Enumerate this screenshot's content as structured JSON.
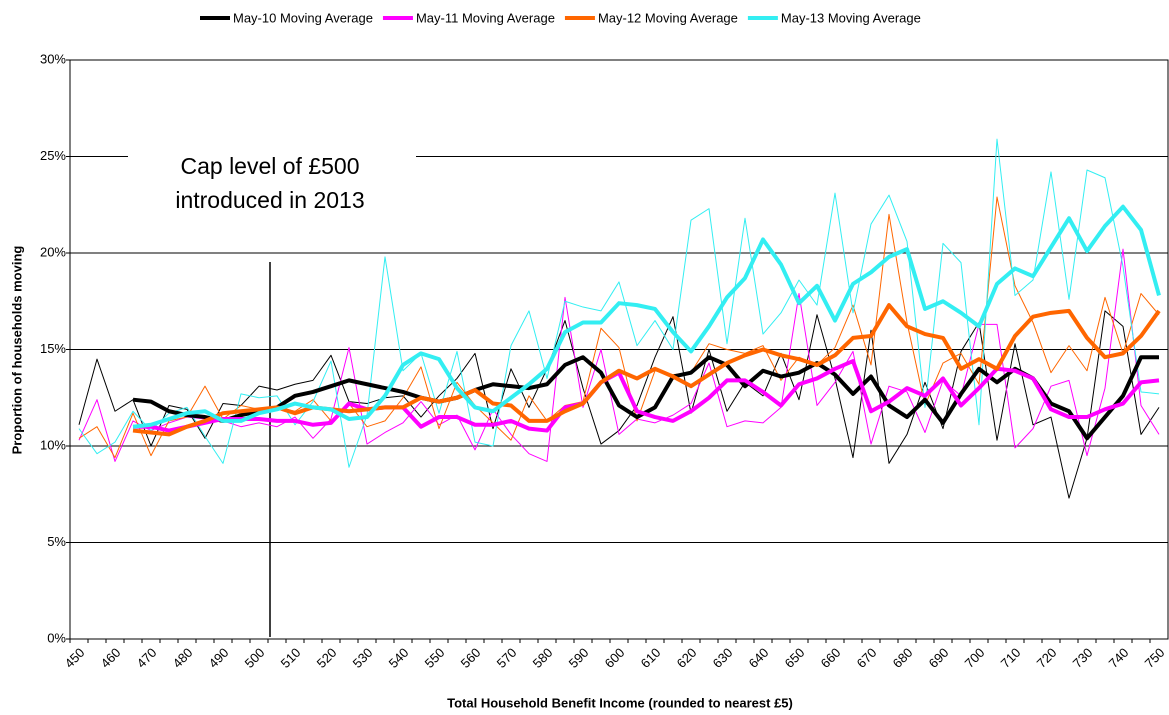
{
  "chart_data": {
    "type": "line",
    "x_label": "Total Household Benefit Income (rounded to nearest £5)",
    "y_label": "Proportion of households moving",
    "annotation": [
      "Cap level of £500",
      "introduced in 2013"
    ],
    "categories": [
      450,
      null,
      460,
      null,
      470,
      null,
      480,
      null,
      490,
      null,
      500,
      null,
      510,
      null,
      520,
      null,
      530,
      null,
      540,
      null,
      550,
      null,
      560,
      null,
      570,
      null,
      580,
      null,
      590,
      null,
      600,
      null,
      610,
      null,
      620,
      null,
      630,
      null,
      640,
      null,
      650,
      null,
      660,
      null,
      670,
      null,
      680,
      null,
      690,
      null,
      700,
      null,
      710,
      null,
      720,
      null,
      730,
      null,
      740,
      null,
      750
    ],
    "ylim": [
      0,
      30
    ],
    "yticks": [
      {
        "value": 0,
        "label": "0%"
      },
      {
        "value": 5,
        "label": "5%"
      },
      {
        "value": 10,
        "label": "10%"
      },
      {
        "value": 15,
        "label": "15%"
      },
      {
        "value": 20,
        "label": "20%"
      },
      {
        "value": 25,
        "label": "25%"
      },
      {
        "value": 30,
        "label": "30%"
      }
    ],
    "grid": true,
    "legend": "top",
    "series": [
      {
        "color": "#000000",
        "line_width": 1,
        "values": [
          11.1,
          14.5,
          11.8,
          12.4,
          10.0,
          12.1,
          11.9,
          10.4,
          12.2,
          12.1,
          13.1,
          12.9,
          13.2,
          13.4,
          14.7,
          12.3,
          12.2,
          12.5,
          12.6,
          11.5,
          12.6,
          13.5,
          14.8,
          10.9,
          14.0,
          12.0,
          14.0,
          16.5,
          13.0,
          10.1,
          10.8,
          12.1,
          14.6,
          16.7,
          11.7,
          15.0,
          11.8,
          13.3,
          12.6,
          14.8,
          12.4,
          16.8,
          13.5,
          9.4,
          16.0,
          9.1,
          10.6,
          13.3,
          10.9,
          14.9,
          16.4,
          10.3,
          15.3,
          11.1,
          11.5,
          7.3,
          10.4,
          17.0,
          16.2,
          10.6,
          12.0
        ]
      },
      {
        "color": "#ff00ff",
        "line_width": 1,
        "values": [
          10.3,
          12.4,
          9.2,
          11.3,
          10.8,
          11.2,
          11.5,
          11.4,
          11.3,
          11.0,
          11.2,
          11.0,
          11.5,
          10.4,
          11.4,
          15.1,
          10.1,
          10.7,
          11.2,
          12.3,
          11.1,
          11.6,
          9.8,
          11.9,
          10.6,
          9.6,
          9.2,
          17.7,
          12.0,
          15.0,
          10.6,
          11.4,
          11.2,
          11.6,
          12.2,
          14.3,
          11.0,
          11.3,
          11.2,
          12.0,
          17.9,
          12.1,
          13.3,
          14.9,
          10.1,
          13.1,
          12.8,
          10.7,
          13.4,
          12.6,
          16.3,
          16.3,
          9.9,
          10.9,
          13.1,
          13.4,
          9.5,
          13.0,
          20.2,
          12.1,
          10.6
        ]
      },
      {
        "color": "#ff6600",
        "line_width": 1,
        "values": [
          10.4,
          11.0,
          9.4,
          11.7,
          9.5,
          11.3,
          11.5,
          13.1,
          11.4,
          12.1,
          11.9,
          12.0,
          11.8,
          12.4,
          11.3,
          12.2,
          11.0,
          11.3,
          12.5,
          14.1,
          10.9,
          13.3,
          12.1,
          11.2,
          10.3,
          12.6,
          11.3,
          12.1,
          12.3,
          16.1,
          15.1,
          11.3,
          13.9,
          13.7,
          13.8,
          15.3,
          15.0,
          14.8,
          15.2,
          13.4,
          14.6,
          14.2,
          15.1,
          17.3,
          14.2,
          22.0,
          16.4,
          12.1,
          14.3,
          14.8,
          13.2,
          22.9,
          18.3,
          16.4,
          13.8,
          15.2,
          13.9,
          17.7,
          14.8,
          17.9,
          16.8
        ]
      },
      {
        "color": "#33eef2",
        "line_width": 1,
        "values": [
          10.9,
          9.6,
          10.2,
          11.8,
          10.8,
          11.7,
          12.0,
          10.5,
          9.1,
          12.7,
          12.5,
          12.6,
          11.1,
          12.3,
          14.4,
          8.9,
          11.6,
          19.8,
          13.9,
          14.8,
          11.7,
          14.9,
          10.2,
          10.0,
          15.2,
          17.0,
          13.5,
          17.5,
          17.2,
          17.0,
          18.5,
          15.2,
          16.5,
          15.0,
          21.7,
          22.3,
          15.3,
          21.8,
          15.8,
          16.9,
          18.6,
          17.3,
          23.1,
          16.9,
          21.5,
          23.0,
          20.6,
          12.0,
          20.5,
          19.5,
          11.1,
          25.9,
          17.8,
          18.6,
          24.2,
          17.6,
          24.3,
          23.9,
          19.3,
          12.8,
          12.7
        ]
      },
      {
        "name": "May-10 Moving Average",
        "color": "#000000",
        "line_width": 4,
        "values": [
          null,
          null,
          null,
          12.4,
          12.3,
          11.8,
          11.6,
          11.5,
          11.3,
          11.6,
          11.8,
          12.0,
          12.6,
          12.8,
          13.1,
          13.4,
          13.2,
          13.0,
          12.8,
          12.5,
          12.3,
          12.5,
          12.9,
          13.2,
          13.1,
          13.0,
          13.2,
          14.2,
          14.6,
          13.8,
          12.1,
          11.5,
          12.0,
          13.6,
          13.8,
          14.6,
          14.2,
          13.1,
          13.9,
          13.6,
          13.8,
          14.3,
          13.7,
          12.7,
          13.6,
          12.1,
          11.5,
          12.4,
          11.2,
          12.7,
          14.0,
          13.3,
          14.0,
          13.5,
          12.2,
          11.8,
          10.4,
          11.5,
          12.6,
          14.6,
          14.6
        ]
      },
      {
        "name": "May-11 Moving Average",
        "color": "#ff00ff",
        "line_width": 4,
        "values": [
          null,
          null,
          null,
          11.0,
          11.0,
          10.8,
          11.0,
          11.2,
          11.4,
          11.4,
          11.4,
          11.3,
          11.3,
          11.1,
          11.2,
          12.2,
          11.9,
          12.0,
          12.0,
          11.0,
          11.5,
          11.5,
          11.1,
          11.1,
          11.3,
          10.9,
          10.8,
          12.0,
          12.2,
          13.3,
          13.8,
          11.8,
          11.5,
          11.3,
          11.8,
          12.5,
          13.4,
          13.4,
          12.8,
          12.1,
          13.2,
          13.5,
          14.0,
          14.4,
          11.8,
          12.3,
          13.0,
          12.6,
          13.5,
          12.1,
          13.0,
          14.0,
          13.9,
          13.5,
          11.9,
          11.5,
          11.5,
          11.9,
          12.2,
          13.3,
          13.4
        ]
      },
      {
        "name": "May-12 Moving Average",
        "color": "#ff6600",
        "line_width": 4,
        "values": [
          null,
          null,
          null,
          10.8,
          10.7,
          10.6,
          11.0,
          11.3,
          11.7,
          11.8,
          11.9,
          12.0,
          11.7,
          12.0,
          11.9,
          11.8,
          11.9,
          12.0,
          12.0,
          12.5,
          12.3,
          12.5,
          12.9,
          12.2,
          12.1,
          11.3,
          11.3,
          11.8,
          12.2,
          13.3,
          13.9,
          13.5,
          14.0,
          13.6,
          13.1,
          13.7,
          14.3,
          14.7,
          15.0,
          14.7,
          14.5,
          14.2,
          14.7,
          15.6,
          15.7,
          17.3,
          16.2,
          15.8,
          15.6,
          14.0,
          14.5,
          14.0,
          15.7,
          16.7,
          16.9,
          17.0,
          15.6,
          14.6,
          14.8,
          15.7,
          17.0
        ]
      },
      {
        "name": "May-13 Moving Average",
        "color": "#33eef2",
        "line_width": 4,
        "values": [
          null,
          null,
          null,
          11.0,
          11.1,
          11.4,
          11.7,
          11.8,
          11.3,
          11.3,
          11.7,
          11.9,
          12.2,
          12.0,
          11.9,
          11.4,
          11.5,
          12.6,
          14.2,
          14.8,
          14.5,
          13.0,
          12.0,
          11.8,
          12.5,
          13.2,
          14.0,
          15.9,
          16.4,
          16.4,
          17.4,
          17.3,
          17.1,
          15.9,
          14.9,
          16.2,
          17.7,
          18.7,
          20.7,
          19.4,
          17.4,
          18.3,
          16.5,
          18.4,
          19.0,
          19.8,
          20.2,
          17.1,
          17.5,
          16.9,
          16.2,
          18.4,
          19.2,
          18.8,
          20.3,
          21.8,
          20.1,
          21.4,
          22.4,
          21.2,
          17.8
        ]
      }
    ]
  }
}
